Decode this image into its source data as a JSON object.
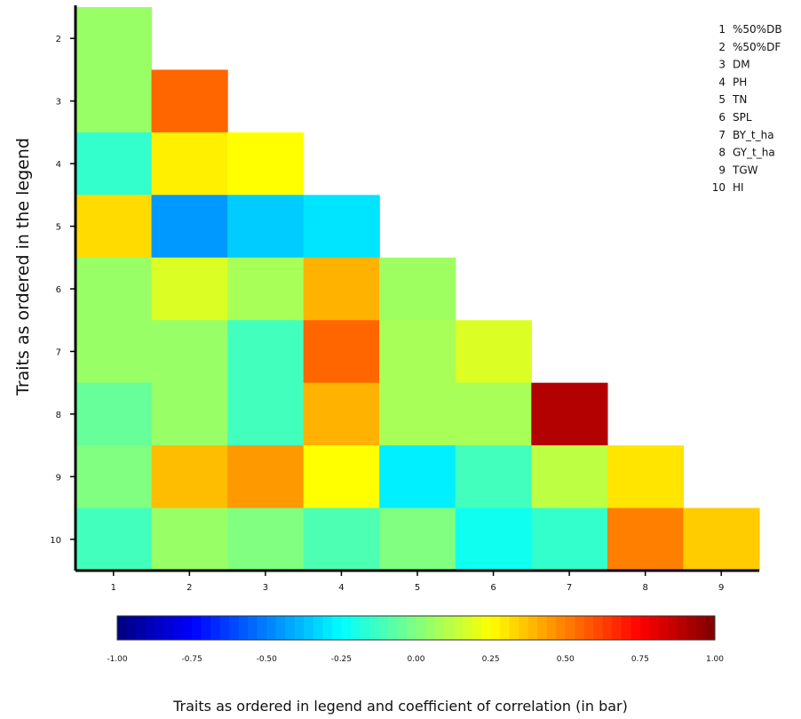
{
  "chart_data": {
    "type": "heatmap",
    "title": "",
    "ylabel": "Traits as ordered in the legend",
    "xlabel": "Traits as ordered in legend and coefficient of correlation (in bar)",
    "x": [
      1,
      2,
      3,
      4,
      5,
      6,
      7,
      8,
      9
    ],
    "y": [
      2,
      3,
      4,
      5,
      6,
      7,
      8,
      9,
      10
    ],
    "legend": [
      {
        "num": "1",
        "name": "%50%DB"
      },
      {
        "num": "2",
        "name": "%50%DF"
      },
      {
        "num": "3",
        "name": "DM"
      },
      {
        "num": "4",
        "name": "PH"
      },
      {
        "num": "5",
        "name": "TN"
      },
      {
        "num": "6",
        "name": "SPL"
      },
      {
        "num": "7",
        "name": "BY_t_ha"
      },
      {
        "num": "8",
        "name": "GY_t_ha"
      },
      {
        "num": "9",
        "name": "TGW"
      },
      {
        "num": "10",
        "name": "HI"
      }
    ],
    "legend_position": "top-right",
    "color_range": [
      -1.0,
      1.0
    ],
    "colorbar_ticks": [
      "-1.00",
      "-0.75",
      "-0.50",
      "-0.25",
      "0.00",
      "0.25",
      "0.50",
      "0.75",
      "1.00"
    ],
    "colormap": "jet",
    "values": [
      [
        0.05
      ],
      [
        0.05,
        0.55
      ],
      [
        -0.15,
        0.28,
        0.25
      ],
      [
        0.32,
        -0.45,
        -0.35,
        -0.3
      ],
      [
        0.05,
        0.18,
        0.08,
        0.4,
        0.06
      ],
      [
        0.05,
        0.05,
        -0.12,
        0.55,
        0.08,
        0.18
      ],
      [
        -0.05,
        0.05,
        -0.12,
        0.4,
        0.08,
        0.08,
        0.9
      ],
      [
        0.0,
        0.38,
        0.45,
        0.25,
        -0.28,
        -0.12,
        0.12,
        0.3
      ],
      [
        -0.12,
        0.05,
        0.0,
        -0.1,
        0.0,
        -0.22,
        -0.15,
        0.5,
        0.35
      ]
    ]
  }
}
